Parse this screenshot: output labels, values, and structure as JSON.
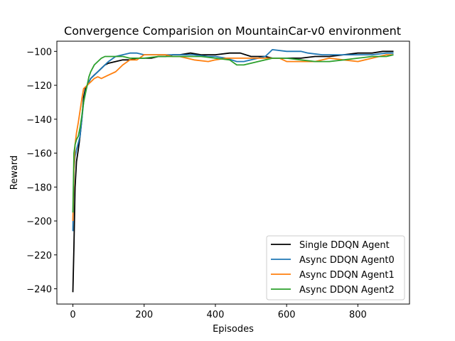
{
  "chart_data": {
    "type": "line",
    "title": "Convergence Comparision on MountainCar-v0 environment",
    "xlabel": "Episodes",
    "ylabel": "Reward",
    "xlim": [
      -45,
      945
    ],
    "ylim": [
      -249,
      -94
    ],
    "xticks": [
      0,
      200,
      400,
      600,
      800
    ],
    "yticks": [
      -240,
      -220,
      -200,
      -180,
      -160,
      -140,
      -120,
      -100
    ],
    "grid": false,
    "legend_position": "lower right",
    "series": [
      {
        "name": "Single DDQN Agent",
        "color": "#000000",
        "x": [
          0,
          3,
          6,
          10,
          15,
          20,
          25,
          30,
          35,
          40,
          50,
          60,
          70,
          80,
          90,
          100,
          120,
          140,
          160,
          180,
          200,
          220,
          240,
          260,
          280,
          300,
          330,
          360,
          400,
          440,
          470,
          500,
          540,
          560,
          600,
          640,
          680,
          720,
          760,
          800,
          840,
          870,
          880,
          900
        ],
        "y": [
          -242,
          -215,
          -180,
          -165,
          -158,
          -150,
          -140,
          -127,
          -122,
          -120,
          -116,
          -114,
          -112,
          -110,
          -108,
          -107,
          -106,
          -105,
          -105,
          -104,
          -104,
          -104,
          -103,
          -103,
          -102,
          -102,
          -101,
          -102,
          -102,
          -101,
          -101,
          -103,
          -103,
          -104,
          -104,
          -104,
          -103,
          -103,
          -102,
          -101,
          -101,
          -100,
          -100,
          -100
        ]
      },
      {
        "name": "Async DDQN Agent0",
        "color": "#1f77b4",
        "x": [
          0,
          3,
          6,
          10,
          15,
          20,
          25,
          30,
          35,
          40,
          50,
          60,
          70,
          80,
          90,
          100,
          120,
          140,
          160,
          180,
          200,
          220,
          240,
          260,
          300,
          340,
          380,
          400,
          430,
          460,
          480,
          500,
          520,
          540,
          560,
          600,
          640,
          660,
          700,
          740,
          780,
          800,
          840,
          880,
          900
        ],
        "y": [
          -206,
          -170,
          -162,
          -158,
          -154,
          -150,
          -140,
          -130,
          -124,
          -120,
          -116,
          -114,
          -112,
          -110,
          -108,
          -106,
          -103,
          -102,
          -101,
          -101,
          -102,
          -102,
          -102,
          -102,
          -102,
          -102,
          -103,
          -103,
          -104,
          -106,
          -106,
          -105,
          -104,
          -103,
          -99,
          -100,
          -100,
          -101,
          -102,
          -102,
          -102,
          -102,
          -102,
          -101,
          -101
        ]
      },
      {
        "name": "Async DDQN Agent1",
        "color": "#ff7f0e",
        "x": [
          0,
          3,
          6,
          10,
          15,
          20,
          25,
          30,
          35,
          40,
          50,
          60,
          70,
          80,
          90,
          100,
          120,
          140,
          160,
          180,
          200,
          220,
          240,
          260,
          280,
          300,
          340,
          380,
          400,
          430,
          460,
          480,
          500,
          540,
          580,
          600,
          640,
          680,
          720,
          760,
          800,
          840,
          880,
          900
        ],
        "y": [
          -200,
          -170,
          -155,
          -148,
          -142,
          -135,
          -128,
          -122,
          -121,
          -120,
          -118,
          -116,
          -115,
          -116,
          -115,
          -114,
          -112,
          -108,
          -105,
          -105,
          -102,
          -102,
          -102,
          -102,
          -103,
          -103,
          -105,
          -106,
          -105,
          -104,
          -104,
          -104,
          -104,
          -104,
          -104,
          -106,
          -106,
          -106,
          -104,
          -105,
          -106,
          -104,
          -102,
          -102
        ]
      },
      {
        "name": "Async DDQN Agent2",
        "color": "#2ca02c",
        "x": [
          0,
          3,
          6,
          10,
          15,
          20,
          25,
          30,
          35,
          40,
          45,
          50,
          55,
          60,
          70,
          80,
          90,
          100,
          120,
          140,
          160,
          180,
          200,
          240,
          280,
          320,
          360,
          400,
          440,
          460,
          480,
          520,
          560,
          600,
          640,
          680,
          720,
          760,
          800,
          840,
          880,
          900
        ],
        "y": [
          -195,
          -160,
          -155,
          -152,
          -150,
          -145,
          -138,
          -130,
          -125,
          -120,
          -115,
          -112,
          -110,
          -108,
          -106,
          -104,
          -103,
          -103,
          -103,
          -103,
          -104,
          -104,
          -104,
          -103,
          -103,
          -103,
          -103,
          -104,
          -105,
          -108,
          -108,
          -106,
          -104,
          -104,
          -105,
          -106,
          -106,
          -105,
          -104,
          -103,
          -103,
          -102
        ]
      }
    ]
  }
}
